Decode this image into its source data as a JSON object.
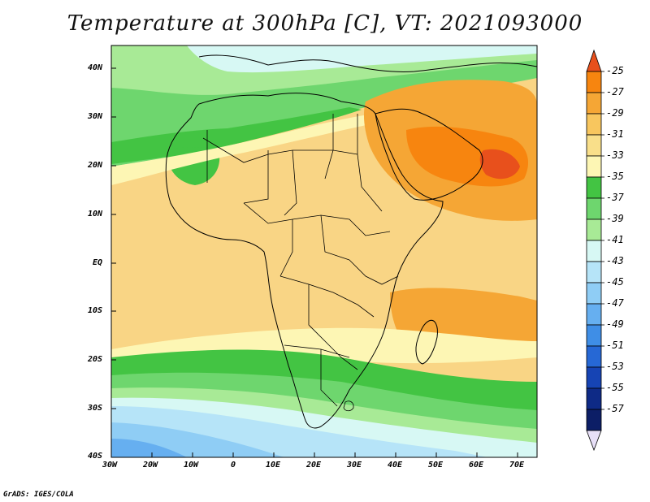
{
  "title": "Temperature at 300hPa [C], VT: 2021093000",
  "credit": "GrADS: IGES/COLA",
  "lat_ticks": [
    "40N",
    "30N",
    "20N",
    "10N",
    "EQ",
    "10S",
    "20S",
    "30S",
    "40S"
  ],
  "lon_ticks": [
    "30W",
    "20W",
    "10W",
    "0",
    "10E",
    "20E",
    "30E",
    "40E",
    "50E",
    "60E",
    "70E"
  ],
  "colorbar": {
    "labels": [
      "-25",
      "-27",
      "-29",
      "-31",
      "-33",
      "-35",
      "-37",
      "-39",
      "-41",
      "-43",
      "-45",
      "-47",
      "-49",
      "-51",
      "-53",
      "-55",
      "-57"
    ],
    "colors": [
      "#e8501c",
      "#f7850f",
      "#f5a635",
      "#f8c65e",
      "#f9df8a",
      "#fdf6b4",
      "#43c443",
      "#6ed66e",
      "#a8ea96",
      "#d7f8f4",
      "#b6e4f8",
      "#8fcdf5",
      "#66aff0",
      "#3f8ee6",
      "#2668d5",
      "#1644b4",
      "#0e2a86",
      "#0c1e66",
      "#e8e0f8"
    ]
  },
  "palette": {
    "land_default": "#f8d888",
    "ocean": "#f8d888",
    "outline": "#000000"
  }
}
